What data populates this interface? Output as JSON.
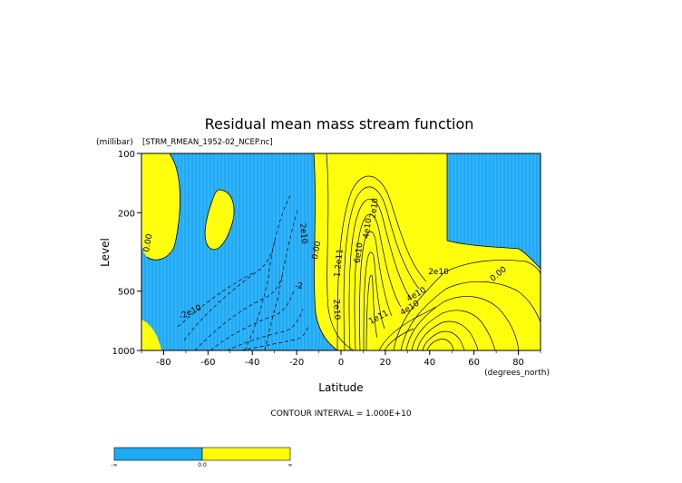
{
  "chart_data": {
    "type": "contour",
    "title": "Residual mean mass stream function",
    "subtitle": "[STRM_RMEAN_1952-02_NCEP.nc]",
    "xlabel": "Latitude",
    "xunits": "(degrees_north)",
    "ylabel": "Level",
    "yunits": "(millibar)",
    "xlim": [
      -90,
      90
    ],
    "ylim": [
      1000,
      100
    ],
    "yscale": "log",
    "x_ticks": [
      -80,
      -60,
      -40,
      -20,
      0,
      20,
      40,
      60,
      80
    ],
    "y_ticks": [
      100,
      200,
      500,
      1000
    ],
    "contour_interval_text": "CONTOUR INTERVAL = 1.000E+10",
    "fill_colors": {
      "negative": "#1eaaf5",
      "positive": "#ffff00"
    },
    "colorbar": {
      "labels": [
        "-∞",
        "0.0",
        "∞"
      ]
    },
    "contour_labels": [
      {
        "text": "0.00",
        "lat": -87,
        "p": 285,
        "angle": -80
      },
      {
        "text": "-2e10",
        "lat": -68,
        "p": 640,
        "angle": -25
      },
      {
        "text": "-2",
        "lat": -19,
        "p": 470,
        "angle": 0
      },
      {
        "text": "0.00",
        "lat": -11,
        "p": 310,
        "angle": -80
      },
      {
        "text": "2e10",
        "lat": -17,
        "p": 255,
        "angle": 85
      },
      {
        "text": "2e10",
        "lat": -2,
        "p": 620,
        "angle": 88
      },
      {
        "text": "2e10",
        "lat": 15,
        "p": 190,
        "angle": -82
      },
      {
        "text": "4e10",
        "lat": 12,
        "p": 240,
        "angle": -82
      },
      {
        "text": "6e10",
        "lat": 8,
        "p": 320,
        "angle": -82
      },
      {
        "text": "1.2e11",
        "lat": -1,
        "p": 360,
        "angle": -84
      },
      {
        "text": "1e11",
        "lat": 17,
        "p": 680,
        "angle": -28
      },
      {
        "text": "4e10",
        "lat": 31,
        "p": 610,
        "angle": -32
      },
      {
        "text": "4e10",
        "lat": 34,
        "p": 520,
        "angle": -30
      },
      {
        "text": "2e10",
        "lat": 44,
        "p": 400,
        "angle": 0
      },
      {
        "text": "0.00",
        "lat": 71,
        "p": 410,
        "angle": -40
      }
    ]
  }
}
